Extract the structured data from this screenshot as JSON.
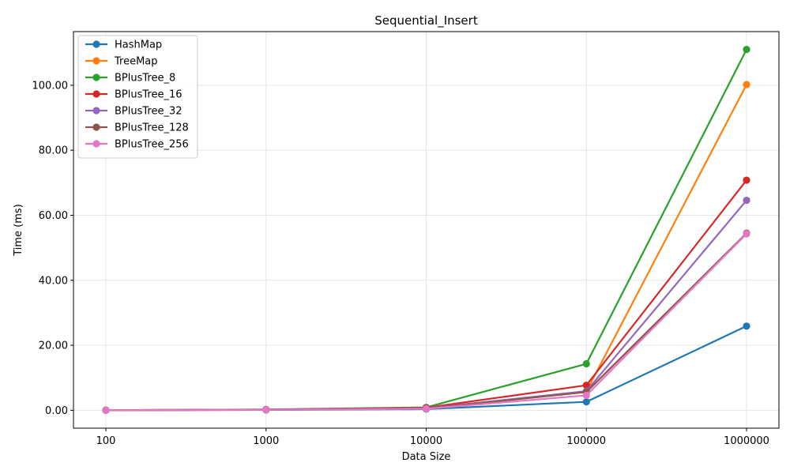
{
  "chart_data": {
    "type": "line",
    "title": "Sequential_Insert",
    "xlabel": "Data Size",
    "ylabel": "Time (ms)",
    "categories": [
      "100",
      "1000",
      "10000",
      "100000",
      "1000000"
    ],
    "y_ticks": [
      "0.00",
      "20.00",
      "40.00",
      "60.00",
      "80.00",
      "100.00"
    ],
    "ylim": [
      -5.5,
      116.5
    ],
    "grid": true,
    "legend_position": "top-left",
    "series": [
      {
        "name": "HashMap",
        "color": "#1f77b4",
        "values": [
          0.01,
          0.1,
          0.35,
          2.6,
          25.9
        ]
      },
      {
        "name": "TreeMap",
        "color": "#ff7f0e",
        "values": [
          0.02,
          0.2,
          0.6,
          5.8,
          100.2
        ]
      },
      {
        "name": "BPlusTree_8",
        "color": "#2ca02c",
        "values": [
          0.03,
          0.25,
          0.9,
          14.3,
          111.0
        ]
      },
      {
        "name": "BPlusTree_16",
        "color": "#d62728",
        "values": [
          0.02,
          0.22,
          0.8,
          7.7,
          70.8
        ]
      },
      {
        "name": "BPlusTree_32",
        "color": "#9467bd",
        "values": [
          0.02,
          0.2,
          0.6,
          5.9,
          64.6
        ]
      },
      {
        "name": "BPlusTree_128",
        "color": "#8c564b",
        "values": [
          0.02,
          0.18,
          0.5,
          5.6,
          54.5
        ]
      },
      {
        "name": "BPlusTree_256",
        "color": "#e377c2",
        "values": [
          0.01,
          0.15,
          0.45,
          4.6,
          54.3
        ]
      }
    ]
  }
}
